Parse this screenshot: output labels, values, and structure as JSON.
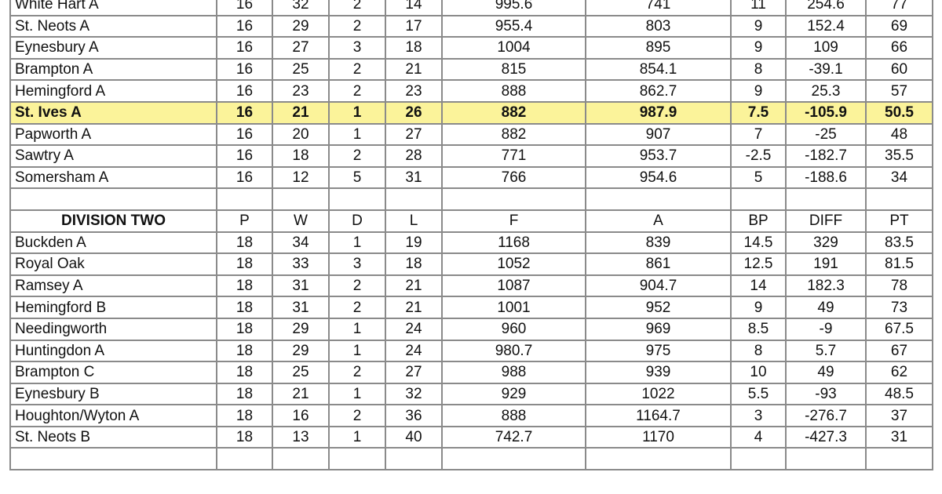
{
  "division_one": {
    "highlight_color": "#fbf39a",
    "highlighted_team": "St. Ives A",
    "rows": [
      [
        "White Hart A",
        "16",
        "32",
        "2",
        "14",
        "995.6",
        "741",
        "11",
        "254.6",
        "77"
      ],
      [
        "St. Neots A",
        "16",
        "29",
        "2",
        "17",
        "955.4",
        "803",
        "9",
        "152.4",
        "69"
      ],
      [
        "Eynesbury A",
        "16",
        "27",
        "3",
        "18",
        "1004",
        "895",
        "9",
        "109",
        "66"
      ],
      [
        "Brampton A",
        "16",
        "25",
        "2",
        "21",
        "815",
        "854.1",
        "8",
        "-39.1",
        "60"
      ],
      [
        "Hemingford A",
        "16",
        "23",
        "2",
        "23",
        "888",
        "862.7",
        "9",
        "25.3",
        "57"
      ],
      [
        "St. Ives A",
        "16",
        "21",
        "1",
        "26",
        "882",
        "987.9",
        "7.5",
        "-105.9",
        "50.5"
      ],
      [
        "Papworth A",
        "16",
        "20",
        "1",
        "27",
        "882",
        "907",
        "7",
        "-25",
        "48"
      ],
      [
        "Sawtry A",
        "16",
        "18",
        "2",
        "28",
        "771",
        "953.7",
        "-2.5",
        "-182.7",
        "35.5"
      ],
      [
        "Somersham A",
        "16",
        "12",
        "5",
        "31",
        "766",
        "954.6",
        "5",
        "-188.6",
        "34"
      ]
    ]
  },
  "division_two": {
    "header": [
      "DIVISION TWO",
      "P",
      "W",
      "D",
      "L",
      "F",
      "A",
      "BP",
      "DIFF",
      "PT"
    ],
    "rows": [
      [
        "Buckden A",
        "18",
        "34",
        "1",
        "19",
        "1168",
        "839",
        "14.5",
        "329",
        "83.5"
      ],
      [
        "Royal Oak",
        "18",
        "33",
        "3",
        "18",
        "1052",
        "861",
        "12.5",
        "191",
        "81.5"
      ],
      [
        "Ramsey A",
        "18",
        "31",
        "2",
        "21",
        "1087",
        "904.7",
        "14",
        "182.3",
        "78"
      ],
      [
        "Hemingford B",
        "18",
        "31",
        "2",
        "21",
        "1001",
        "952",
        "9",
        "49",
        "73"
      ],
      [
        "Needingworth",
        "18",
        "29",
        "1",
        "24",
        "960",
        "969",
        "8.5",
        "-9",
        "67.5"
      ],
      [
        "Huntingdon A",
        "18",
        "29",
        "1",
        "24",
        "980.7",
        "975",
        "8",
        "5.7",
        "67"
      ],
      [
        "Brampton C",
        "18",
        "25",
        "2",
        "27",
        "988",
        "939",
        "10",
        "49",
        "62"
      ],
      [
        "Eynesbury B",
        "18",
        "21",
        "1",
        "32",
        "929",
        "1022",
        "5.5",
        "-93",
        "48.5"
      ],
      [
        "Houghton/Wyton A",
        "18",
        "16",
        "2",
        "36",
        "888",
        "1164.7",
        "3",
        "-276.7",
        "37"
      ],
      [
        "St. Neots B",
        "18",
        "13",
        "1",
        "40",
        "742.7",
        "1170",
        "4",
        "-427.3",
        "31"
      ]
    ]
  }
}
